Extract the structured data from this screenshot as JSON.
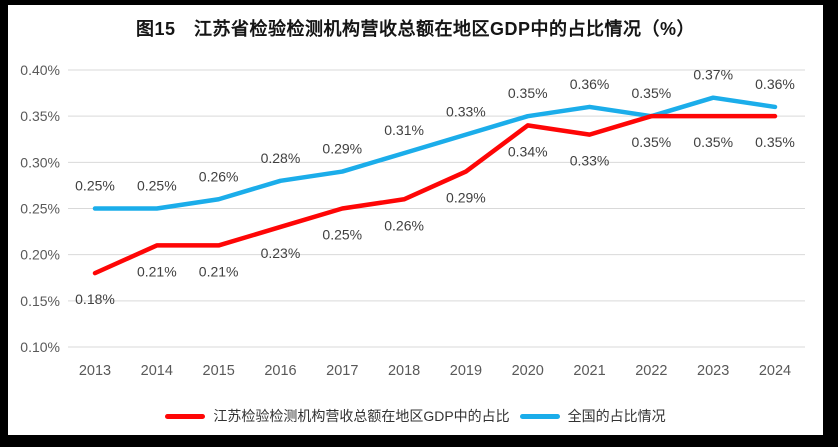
{
  "title": "图15　江苏省检验检测机构营收总额在地区GDP中的占比情况（%）",
  "colors": {
    "frame": "#000000",
    "panel": "#ffffff",
    "grid": "#d9d9d9",
    "tick_text": "#595959",
    "data_label_text": "#404040",
    "series_jiangsu": "#fe0606",
    "series_national": "#1badea"
  },
  "chart_data": {
    "type": "line",
    "title": "图15　江苏省检验检测机构营收总额在地区GDP中的占比情况（%）",
    "xlabel": "",
    "ylabel": "",
    "categories": [
      "2013",
      "2014",
      "2015",
      "2016",
      "2017",
      "2018",
      "2019",
      "2020",
      "2021",
      "2022",
      "2023",
      "2024"
    ],
    "series": [
      {
        "name": "江苏检验检测机构营收总额在地区GDP中的占比",
        "color": "#fe0606",
        "values": [
          0.18,
          0.21,
          0.21,
          0.23,
          0.25,
          0.26,
          0.29,
          0.34,
          0.33,
          0.35,
          0.35,
          0.35
        ],
        "data_labels": [
          "0.18%",
          "0.21%",
          "0.21%",
          "0.23%",
          "0.25%",
          "0.26%",
          "0.29%",
          "0.34%",
          "0.33%",
          "0.35%",
          "0.35%",
          "0.35%"
        ],
        "label_side": "below"
      },
      {
        "name": "全国的占比情况",
        "color": "#1badea",
        "values": [
          0.25,
          0.25,
          0.26,
          0.28,
          0.29,
          0.31,
          0.33,
          0.35,
          0.36,
          0.35,
          0.37,
          0.36
        ],
        "data_labels": [
          "0.25%",
          "0.25%",
          "0.26%",
          "0.28%",
          "0.29%",
          "0.31%",
          "0.33%",
          "0.35%",
          "0.36%",
          "0.35%",
          "0.37%",
          "0.36%"
        ],
        "label_side": "above"
      }
    ],
    "ylim": [
      0.1,
      0.4
    ],
    "ytick_values": [
      0.4,
      0.35,
      0.3,
      0.25,
      0.2,
      0.15,
      0.1
    ],
    "ytick_labels": [
      "0.40%",
      "0.35%",
      "0.30%",
      "0.25%",
      "0.20%",
      "0.15%",
      "0.10%"
    ],
    "grid": true,
    "legend_position": "bottom"
  }
}
